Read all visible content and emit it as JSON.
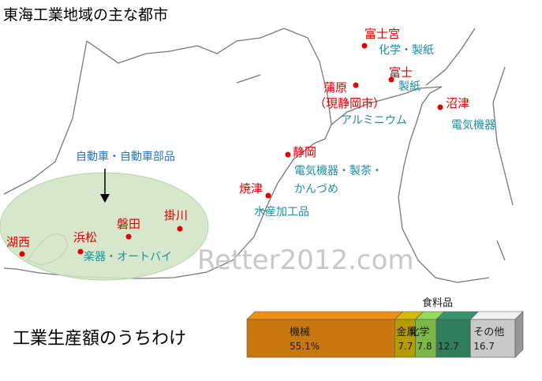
{
  "map": {
    "title": "東海工業地域の主な都市",
    "cities": [
      {
        "name": "富士宮",
        "industry": [
          "化学・製紙"
        ]
      },
      {
        "name": "富士",
        "industry": [
          "製紙"
        ]
      },
      {
        "name": "蒲原",
        "subtitle": "（現静岡市）",
        "industry": [
          "アルミニウム"
        ]
      },
      {
        "name": "沼津",
        "industry": [
          "電気機器"
        ]
      },
      {
        "name": "静岡",
        "industry": [
          "電気機器・製茶・",
          "かんづめ"
        ]
      },
      {
        "name": "焼津",
        "industry": [
          "水産加工品"
        ]
      },
      {
        "name": "磐田",
        "industry": []
      },
      {
        "name": "掛川",
        "industry": []
      },
      {
        "name": "湖西",
        "industry": []
      },
      {
        "name": "浜松",
        "industry": [
          "楽器・オートバイ"
        ]
      }
    ],
    "annotation": "自動車・自動車部品",
    "watermark": "Retter2012.com"
  },
  "chart_title": "工業生産額のうちわけ",
  "chart_data": {
    "type": "bar",
    "title": "工業生産額のうちわけ",
    "categories": [
      "機械",
      "金属",
      "化学",
      "食料品",
      "その他"
    ],
    "values": [
      55.1,
      7.7,
      7.8,
      12.7,
      16.7
    ],
    "value_labels": [
      "55.1%",
      "7.7",
      "7.8",
      "12.7",
      "16.7"
    ],
    "colors": [
      "#c8780f",
      "#b59a00",
      "#7ab84a",
      "#2f7d5a",
      "#c9c9c9"
    ],
    "stacked": true,
    "orientation": "horizontal"
  }
}
